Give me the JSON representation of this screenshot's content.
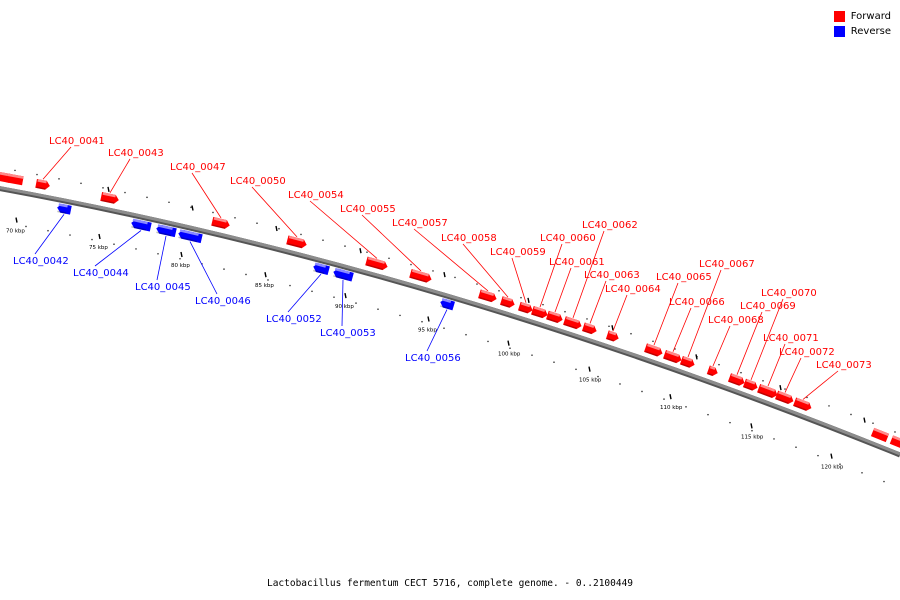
{
  "legend": {
    "forward_label": "Forward",
    "reverse_label": "Reverse"
  },
  "colors": {
    "forward": "#ff0000",
    "reverse": "#0000ff",
    "backbone": "#8c8c8c"
  },
  "caption": "Lactobacillus fermentum CECT 5716, complete genome. - 0..2100449",
  "scale_labels": [
    "70 kbp",
    "75 kbp",
    "80 kbp",
    "85 kbp",
    "90 kbp",
    "95 kbp",
    "100 kbp",
    "105 kbp",
    "110 kbp",
    "115 kbp",
    "120 kbp"
  ],
  "genes": [
    {
      "name": "LC40_0041",
      "strand": "forward"
    },
    {
      "name": "LC40_0042",
      "strand": "reverse"
    },
    {
      "name": "LC40_0043",
      "strand": "forward"
    },
    {
      "name": "LC40_0044",
      "strand": "reverse"
    },
    {
      "name": "LC40_0045",
      "strand": "reverse"
    },
    {
      "name": "LC40_0046",
      "strand": "reverse"
    },
    {
      "name": "LC40_0047",
      "strand": "forward"
    },
    {
      "name": "LC40_0050",
      "strand": "forward"
    },
    {
      "name": "LC40_0052",
      "strand": "reverse"
    },
    {
      "name": "LC40_0053",
      "strand": "reverse"
    },
    {
      "name": "LC40_0054",
      "strand": "forward"
    },
    {
      "name": "LC40_0055",
      "strand": "forward"
    },
    {
      "name": "LC40_0056",
      "strand": "reverse"
    },
    {
      "name": "LC40_0057",
      "strand": "forward"
    },
    {
      "name": "LC40_0058",
      "strand": "forward"
    },
    {
      "name": "LC40_0059",
      "strand": "forward"
    },
    {
      "name": "LC40_0060",
      "strand": "forward"
    },
    {
      "name": "LC40_0061",
      "strand": "forward"
    },
    {
      "name": "LC40_0062",
      "strand": "forward"
    },
    {
      "name": "LC40_0063",
      "strand": "forward"
    },
    {
      "name": "LC40_0064",
      "strand": "forward"
    },
    {
      "name": "LC40_0065",
      "strand": "forward"
    },
    {
      "name": "LC40_0066",
      "strand": "forward"
    },
    {
      "name": "LC40_0067",
      "strand": "forward"
    },
    {
      "name": "LC40_0068",
      "strand": "forward"
    },
    {
      "name": "LC40_0069",
      "strand": "forward"
    },
    {
      "name": "LC40_0070",
      "strand": "forward"
    },
    {
      "name": "LC40_0071",
      "strand": "forward"
    },
    {
      "name": "LC40_0072",
      "strand": "forward"
    },
    {
      "name": "LC40_0073",
      "strand": "forward"
    }
  ]
}
